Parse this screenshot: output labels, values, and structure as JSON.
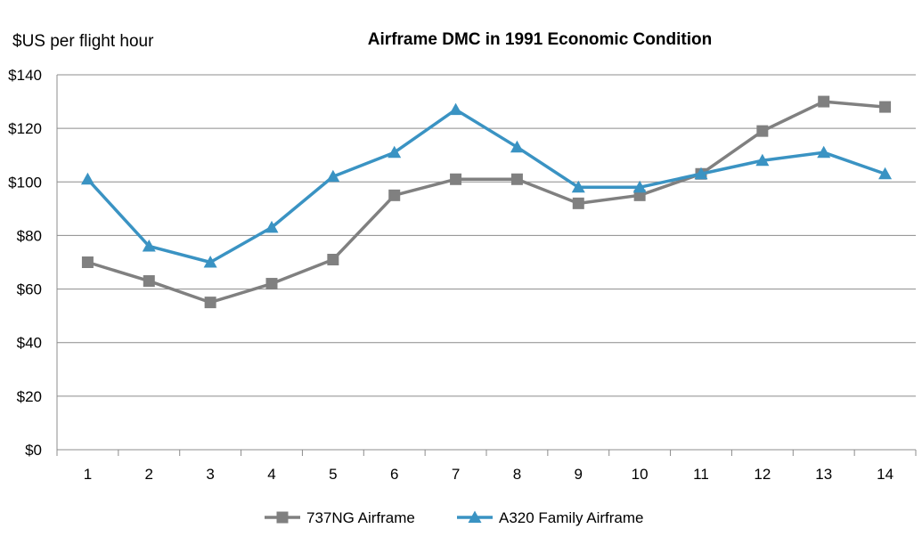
{
  "chart_data": {
    "type": "line",
    "title": "Airframe DMC  in 1991 Economic Condition",
    "ylabel": "$US per flight hour",
    "xlabel": "",
    "x": [
      1,
      2,
      3,
      4,
      5,
      6,
      7,
      8,
      9,
      10,
      11,
      12,
      13,
      14
    ],
    "x_tick_labels": [
      "1",
      "2",
      "3",
      "4",
      "5",
      "6",
      "7",
      "8",
      "9",
      "10",
      "11",
      "12",
      "13",
      "14"
    ],
    "ylim": [
      0,
      140
    ],
    "y_tick_labels": [
      "$0",
      "$20",
      "$40",
      "$60",
      "$80",
      "$100",
      "$120",
      "$140"
    ],
    "y_ticks": [
      0,
      20,
      40,
      60,
      80,
      100,
      120,
      140
    ],
    "grid": "horizontal",
    "legend_position": "bottom",
    "series": [
      {
        "name": "737NG Airframe",
        "marker": "square",
        "color": "#808080",
        "values": [
          70,
          63,
          55,
          62,
          71,
          95,
          101,
          101,
          92,
          95,
          103,
          119,
          130,
          128
        ]
      },
      {
        "name": "A320 Family Airframe",
        "marker": "triangle",
        "color": "#3a93c3",
        "values": [
          101,
          76,
          70,
          83,
          102,
          111,
          127,
          113,
          98,
          98,
          103,
          108,
          111,
          103
        ]
      }
    ]
  }
}
